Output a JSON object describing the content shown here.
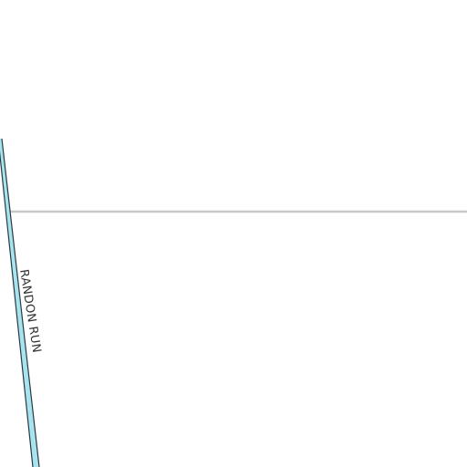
{
  "map": {
    "streams": [
      {
        "name": "RANDON RUN",
        "fill_color": "#a8e4f0",
        "outline_color": "#2a3a40"
      }
    ],
    "boundary_line": {
      "color": "#c8c8c8"
    }
  }
}
